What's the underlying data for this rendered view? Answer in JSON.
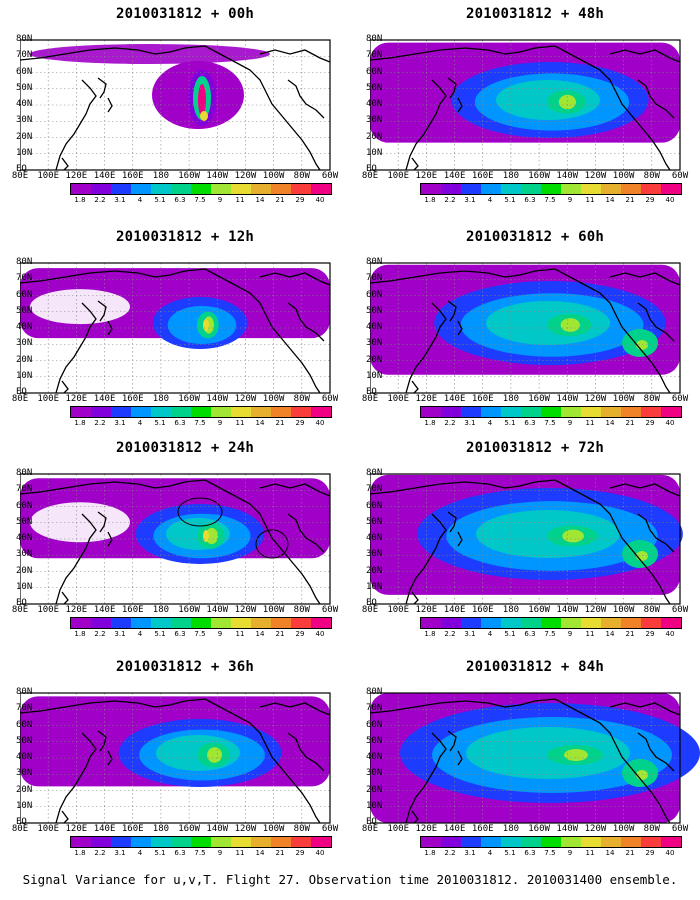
{
  "figure": {
    "footer": "Signal Variance for u,v,T. Flight 27. Observation time 2010031812. 2010031400 ensemble.",
    "lat_labels": [
      "80N",
      "70N",
      "60N",
      "50N",
      "40N",
      "30N",
      "20N",
      "10N",
      "EQ"
    ],
    "lon_labels": [
      "80E",
      "100E",
      "120E",
      "140E",
      "160E",
      "180",
      "160W",
      "140W",
      "120W",
      "100W",
      "80W",
      "60W"
    ],
    "colorbar": {
      "labels": [
        "1.8",
        "2.2",
        "3.1",
        "4",
        "5.1",
        "6.3",
        "7.5",
        "9",
        "11",
        "14",
        "21",
        "29",
        "40"
      ],
      "colors": [
        "#a000c8",
        "#8200dc",
        "#1e3cff",
        "#0096ff",
        "#00c8c8",
        "#00d28c",
        "#00dc00",
        "#a0e632",
        "#e6dc32",
        "#e6af2d",
        "#f08228",
        "#fa3c3c",
        "#f00082"
      ]
    },
    "panels": [
      {
        "id": "p00",
        "title": "2010031812 + 00h",
        "lead": 0
      },
      {
        "id": "p48",
        "title": "2010031812 + 48h",
        "lead": 48
      },
      {
        "id": "p12",
        "title": "2010031812 + 12h",
        "lead": 12
      },
      {
        "id": "p60",
        "title": "2010031812 + 60h",
        "lead": 60
      },
      {
        "id": "p24",
        "title": "2010031812 + 24h",
        "lead": 24
      },
      {
        "id": "p72",
        "title": "2010031812 + 72h",
        "lead": 72
      },
      {
        "id": "p36",
        "title": "2010031812 + 36h",
        "lead": 36
      },
      {
        "id": "p84",
        "title": "2010031812 + 84h",
        "lead": 84
      }
    ]
  }
}
